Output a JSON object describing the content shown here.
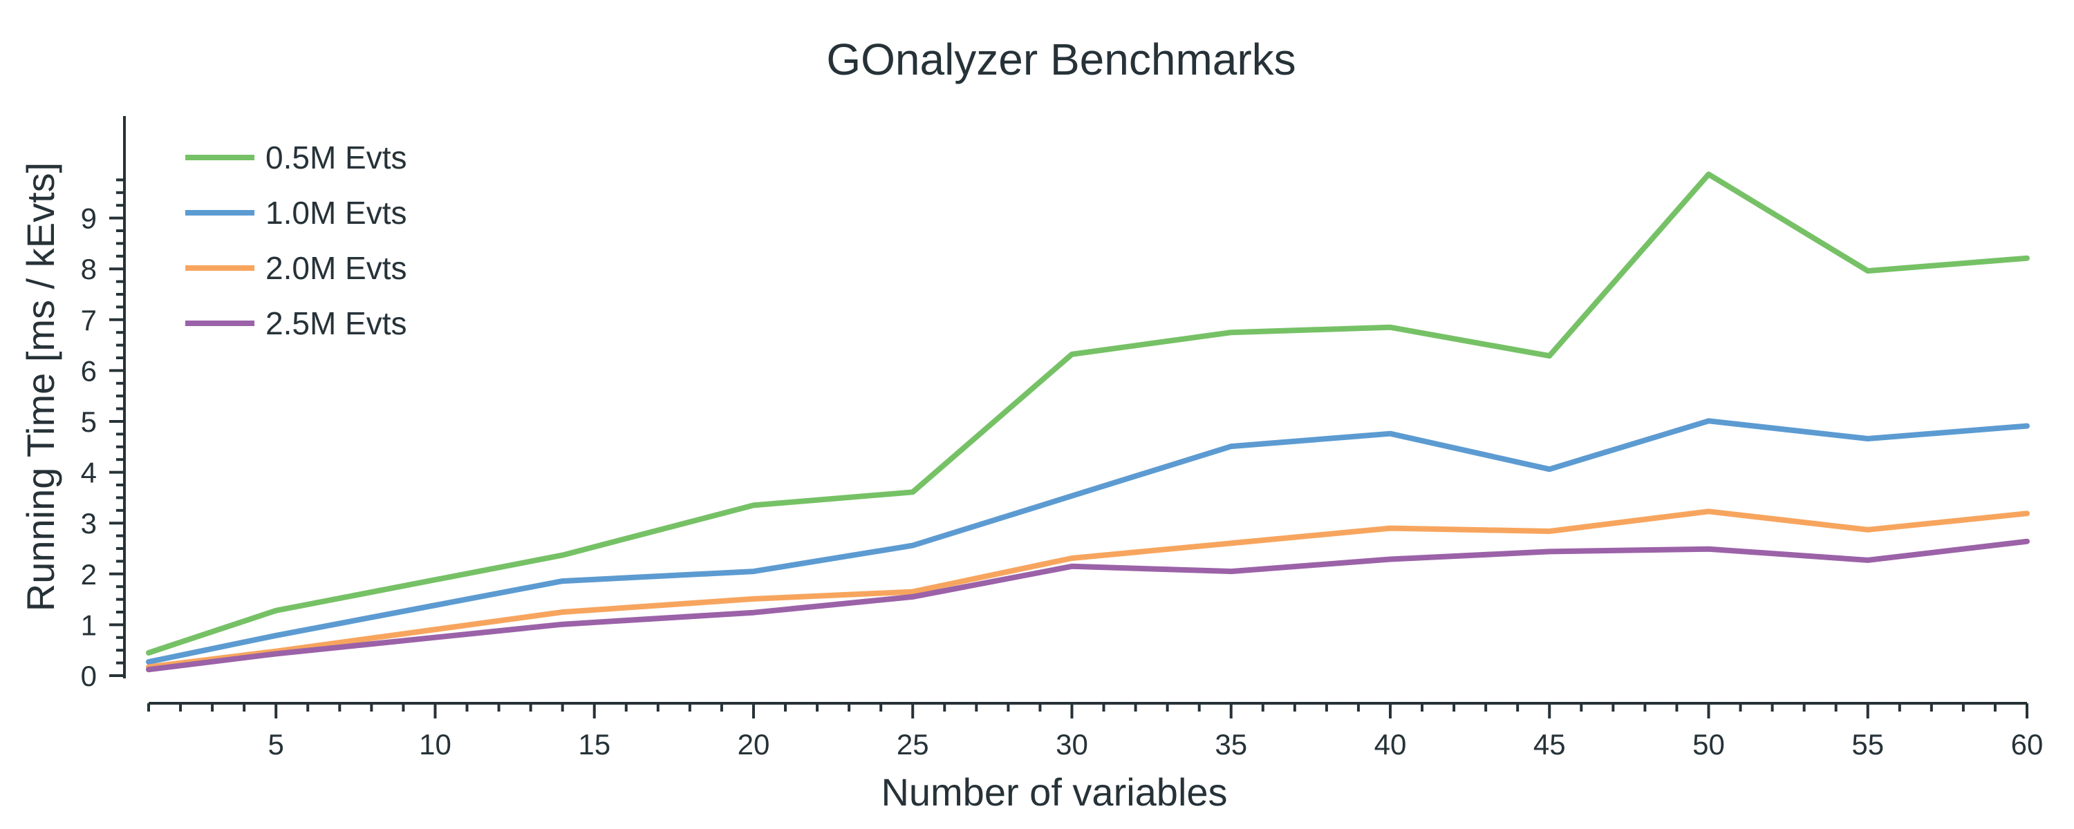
{
  "chart_data": {
    "type": "line",
    "title": "GOnalyzer Benchmarks",
    "xlabel": "Number of variables",
    "ylabel": "Running Time [ms / kEvts]",
    "xlim": [
      1,
      60
    ],
    "ylim": [
      -0.5,
      10
    ],
    "x_ticks": [
      5,
      10,
      15,
      20,
      25,
      30,
      35,
      40,
      45,
      50,
      55,
      60
    ],
    "y_ticks": [
      0,
      1,
      2,
      3,
      4,
      5,
      6,
      7,
      8,
      9
    ],
    "grid": false,
    "legend_position": "top-left",
    "x": [
      1,
      5,
      14,
      20,
      25,
      30,
      35,
      40,
      45,
      50,
      55,
      60
    ],
    "series": [
      {
        "name": "0.5M Evts",
        "color": "#76c166",
        "values": [
          0.45,
          1.28,
          2.37,
          3.35,
          3.61,
          6.32,
          6.75,
          6.85,
          6.29,
          9.86,
          7.96,
          8.21
        ]
      },
      {
        "name": "1.0M Evts",
        "color": "#5c9bd1",
        "values": [
          0.27,
          0.79,
          1.86,
          2.05,
          2.56,
          null,
          4.51,
          4.76,
          4.06,
          5.01,
          4.66,
          4.91
        ]
      },
      {
        "name": "2.0M Evts",
        "color": "#f7a55e",
        "values": [
          0.17,
          0.48,
          1.25,
          1.51,
          1.65,
          2.31,
          null,
          2.9,
          2.84,
          3.23,
          2.87,
          3.19
        ]
      },
      {
        "name": "2.5M Evts",
        "color": "#9b62a8",
        "values": [
          0.12,
          0.43,
          1.01,
          1.24,
          1.55,
          2.15,
          2.05,
          2.29,
          2.44,
          2.49,
          2.27,
          2.64
        ]
      }
    ]
  }
}
